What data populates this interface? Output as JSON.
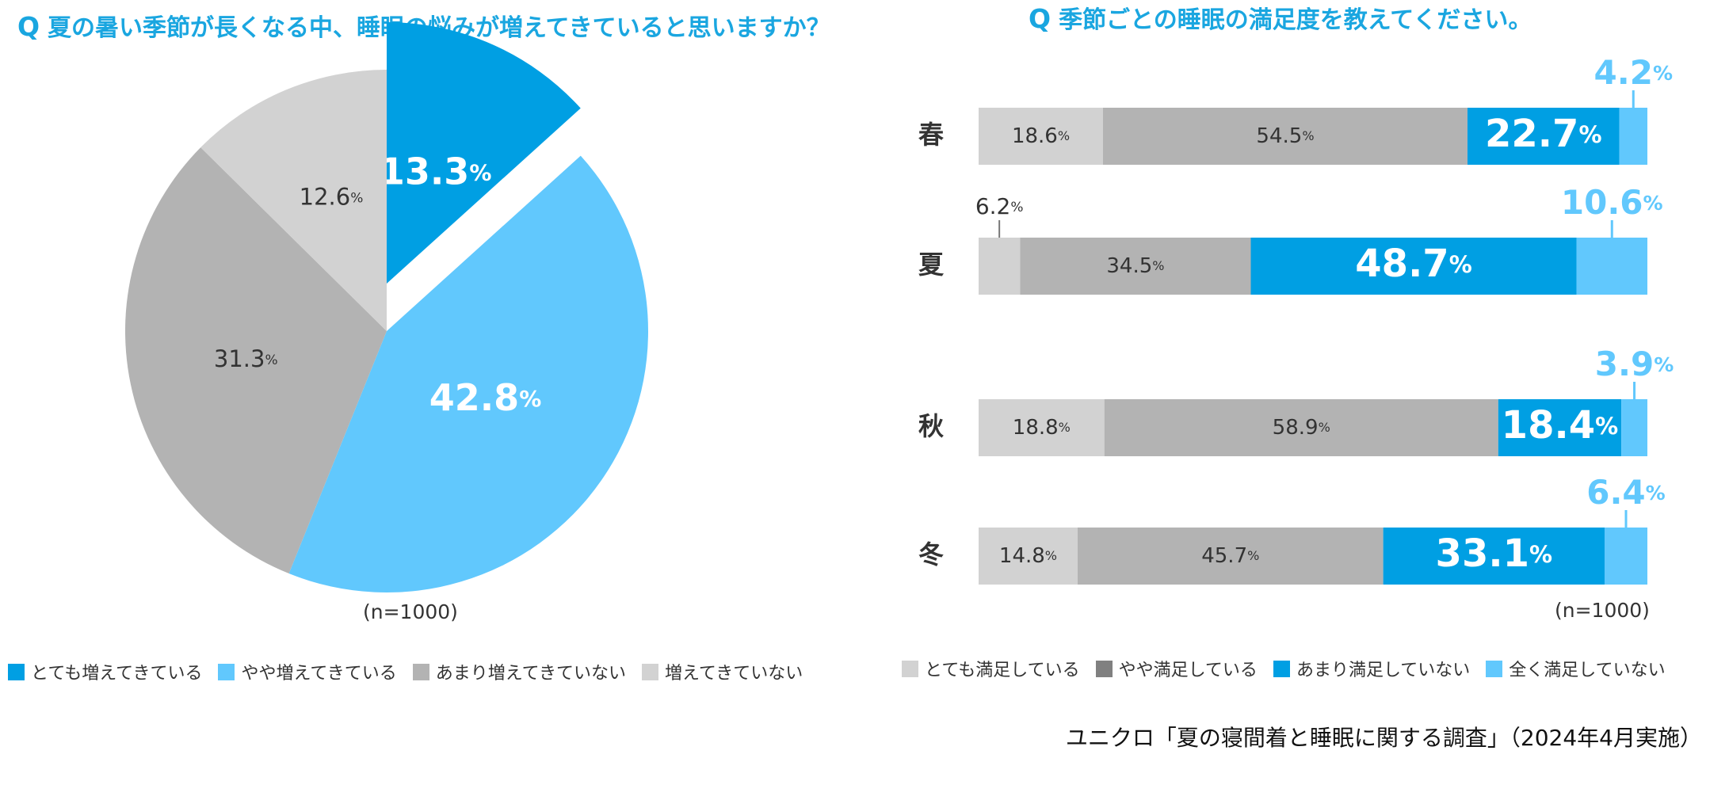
{
  "pie_section": {
    "title_marker": "Q",
    "title": "夏の暑い季節が長くなる中、睡眠の悩みが増えてきていると思いますか？",
    "n_label": "(n=1000)"
  },
  "bar_section": {
    "title_marker": "Q",
    "title": "季節ごとの睡眠の満足度を教えてください。",
    "n_label": "(n=1000)"
  },
  "source": "ユニクロ「夏の寝間着と睡眠に関する調査」（2024年4月実施）",
  "chart_data": [
    {
      "type": "pie",
      "title": "夏の暑い季節が長くなる中、睡眠の悩みが増えてきていると思いますか？",
      "unit": "%",
      "labels": [
        "とても増えてきている",
        "やや増えてきている",
        "あまり増えてきていない",
        "増えてきていない"
      ],
      "values": [
        13.3,
        42.8,
        31.3,
        12.6
      ],
      "value_labels": [
        "13.3",
        "42.8",
        "31.3",
        "12.6"
      ],
      "colors": [
        "#009fe3",
        "#61c8fd",
        "#b3b3b3",
        "#d2d2d2"
      ],
      "label_colors": [
        "#ffffff",
        "#ffffff",
        "#333333",
        "#333333"
      ],
      "exploded": [
        true,
        false,
        false,
        false
      ],
      "legend_position": "bottom",
      "n": "(n=1000)"
    },
    {
      "type": "bar",
      "orientation": "horizontal",
      "stacked": true,
      "title": "季節ごとの睡眠の満足度を教えてください。",
      "unit": "%",
      "categories": [
        "春",
        "夏",
        "秋",
        "冬"
      ],
      "series": [
        {
          "name": "とても満足している",
          "color": "#d2d2d2",
          "values": [
            18.6,
            6.2,
            18.8,
            14.8
          ],
          "labels": [
            "18.6",
            "6.2",
            "18.8",
            "14.8"
          ]
        },
        {
          "name": "やや満足している",
          "color": "#b3b3b3",
          "values": [
            54.5,
            34.5,
            58.9,
            45.7
          ],
          "labels": [
            "54.5",
            "34.5",
            "58.9",
            "45.7"
          ]
        },
        {
          "name": "あまり満足していない",
          "color": "#009fe3",
          "values": [
            22.7,
            48.7,
            18.4,
            33.1
          ],
          "labels": [
            "22.7",
            "48.7",
            "18.4",
            "33.1"
          ]
        },
        {
          "name": "全く満足していない",
          "color": "#61c8fd",
          "values": [
            4.2,
            10.6,
            3.9,
            6.4
          ],
          "labels": [
            "4.2",
            "10.6",
            "3.9",
            "6.4"
          ]
        }
      ],
      "legend": [
        {
          "name": "とても満足している",
          "color": "#d2d2d2"
        },
        {
          "name": "やや満足している",
          "color": "#808080"
        },
        {
          "name": "あまり満足していない",
          "color": "#009fe3"
        },
        {
          "name": "全く満足していない",
          "color": "#61c8fd"
        }
      ],
      "legend_position": "bottom",
      "n": "(n=1000)"
    }
  ]
}
